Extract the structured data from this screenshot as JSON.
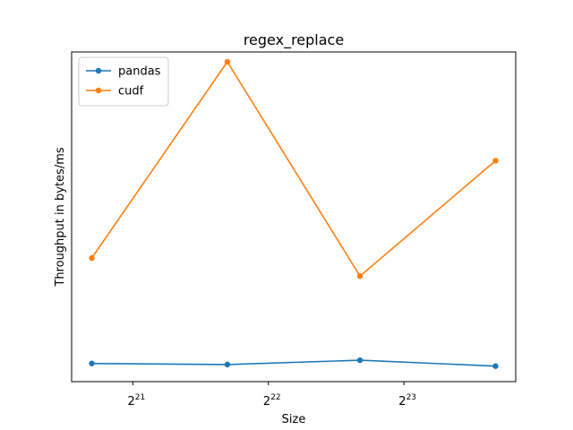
{
  "chart_data": {
    "type": "line",
    "title": "regex_replace",
    "xlabel": "Size",
    "ylabel": "Throughput in bytes/ms",
    "x_scale": "log2",
    "x": [
      1700000,
      3400000,
      6700000,
      13400000
    ],
    "x_ticks": [
      {
        "value": 2097152,
        "base": "2",
        "exp": "21"
      },
      {
        "value": 4194304,
        "base": "2",
        "exp": "22"
      },
      {
        "value": 8388608,
        "base": "2",
        "exp": "23"
      }
    ],
    "ylim": [
      0,
      1
    ],
    "y_ticks_shown": false,
    "series": [
      {
        "name": "pandas",
        "color": "#1f77b4",
        "values": [
          0.055,
          0.052,
          0.065,
          0.047
        ]
      },
      {
        "name": "cudf",
        "color": "#ff7f0e",
        "values": [
          0.375,
          0.97,
          0.32,
          0.67
        ]
      }
    ],
    "legend": "upper-left",
    "grid": false
  }
}
